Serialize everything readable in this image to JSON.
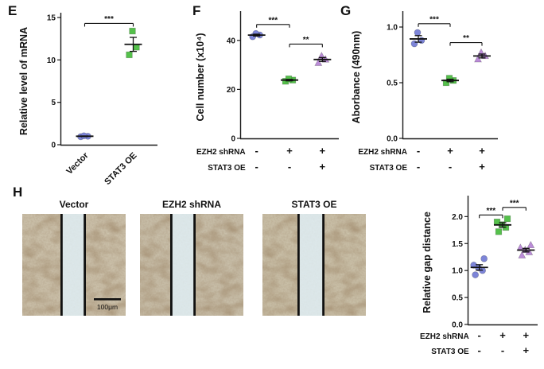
{
  "panel_labels": {
    "e": "E",
    "f": "F",
    "g": "G",
    "h": "H"
  },
  "colors": {
    "axis": "#1a1a1a",
    "blue": "#7d85d8",
    "green": "#55c14b",
    "purple": "#bb8cd8"
  },
  "chart_data": [
    {
      "id": "E",
      "type": "scatter",
      "ylabel": "Relative level of mRNA",
      "ylim": [
        0,
        15
      ],
      "yticks": [
        {
          "v": 0,
          "t": "0"
        },
        {
          "v": 5,
          "t": "5"
        },
        {
          "v": 10,
          "t": "10"
        },
        {
          "v": 15,
          "t": "15"
        }
      ],
      "x_mode": "rotated",
      "groups": [
        {
          "label": "Vector",
          "marker": "circle",
          "color": "blue",
          "points": [
            0.95,
            1.0,
            1.05
          ]
        },
        {
          "label": "STAT3 OE",
          "marker": "square",
          "color": "green",
          "points": [
            10.6,
            11.5,
            13.4
          ]
        }
      ],
      "significance": [
        {
          "from": 0,
          "to": 1,
          "label": "***",
          "y": 14.3
        }
      ]
    },
    {
      "id": "F",
      "type": "scatter",
      "ylabel": "Cell number (x10⁴)",
      "ylim": [
        0,
        50
      ],
      "yticks": [
        {
          "v": 0,
          "t": "0"
        },
        {
          "v": 20,
          "t": "20"
        },
        {
          "v": 40,
          "t": "40"
        }
      ],
      "x_mode": "matrix",
      "groups": [
        {
          "marker": "circle",
          "color": "blue",
          "points": [
            41.5,
            42.2,
            42.8
          ]
        },
        {
          "marker": "square",
          "color": "green",
          "points": [
            23.3,
            23.8,
            24.3
          ]
        },
        {
          "marker": "triangle",
          "color": "purple",
          "points": [
            30.8,
            32.2,
            33.6
          ]
        }
      ],
      "significance": [
        {
          "from": 0,
          "to": 1,
          "label": "***",
          "y": 46.5
        },
        {
          "from": 1,
          "to": 2,
          "label": "**",
          "y": 38.5
        }
      ],
      "xmatrix": [
        {
          "label": "EZH2 shRNA",
          "values": [
            "-",
            "+",
            "+"
          ]
        },
        {
          "label": "STAT3 OE",
          "values": [
            "-",
            "-",
            "+"
          ]
        }
      ]
    },
    {
      "id": "G",
      "type": "scatter",
      "ylabel": "Aborbance (490nm)",
      "ylim": [
        0,
        1.1
      ],
      "yticks": [
        {
          "v": 0,
          "t": "0.0"
        },
        {
          "v": 0.5,
          "t": "0.5"
        },
        {
          "v": 1,
          "t": "1.0"
        }
      ],
      "x_mode": "matrix",
      "groups": [
        {
          "marker": "circle",
          "color": "blue",
          "points": [
            0.85,
            0.88,
            0.95
          ]
        },
        {
          "marker": "square",
          "color": "green",
          "points": [
            0.5,
            0.52,
            0.54
          ]
        },
        {
          "marker": "triangle",
          "color": "purple",
          "points": [
            0.71,
            0.74,
            0.77
          ]
        }
      ],
      "significance": [
        {
          "from": 0,
          "to": 1,
          "label": "***",
          "y": 1.03
        },
        {
          "from": 1,
          "to": 2,
          "label": "**",
          "y": 0.86
        }
      ],
      "xmatrix": [
        {
          "label": "EZH2 shRNA",
          "values": [
            "-",
            "+",
            "+"
          ]
        },
        {
          "label": "STAT3 OE",
          "values": [
            "-",
            "-",
            "+"
          ]
        }
      ]
    },
    {
      "id": "H",
      "type": "scatter",
      "ylabel": "Relative gap distance",
      "ylim": [
        0,
        2.3
      ],
      "yticks": [
        {
          "v": 0,
          "t": "0.0"
        },
        {
          "v": 0.5,
          "t": "0.5"
        },
        {
          "v": 1,
          "t": "1.0"
        },
        {
          "v": 1.5,
          "t": "1.5"
        },
        {
          "v": 2,
          "t": "2.0"
        }
      ],
      "x_mode": "matrix",
      "groups": [
        {
          "marker": "circle",
          "color": "blue",
          "points": [
            0.92,
            1.0,
            1.05,
            1.1,
            1.22
          ]
        },
        {
          "marker": "square",
          "color": "green",
          "points": [
            1.72,
            1.8,
            1.85,
            1.9,
            1.96
          ]
        },
        {
          "marker": "triangle",
          "color": "purple",
          "points": [
            1.28,
            1.34,
            1.38,
            1.42,
            1.47
          ]
        }
      ],
      "significance": [
        {
          "from": 0,
          "to": 1,
          "label": "***",
          "y": 2.03
        },
        {
          "from": 1,
          "to": 2,
          "label": "***",
          "y": 2.17
        }
      ],
      "xmatrix": [
        {
          "label": "EZH2 shRNA",
          "values": [
            "-",
            "+",
            "+"
          ]
        },
        {
          "label": "STAT3 OE",
          "values": [
            "-",
            "-",
            "+"
          ]
        }
      ]
    }
  ],
  "micrographs": {
    "items": [
      {
        "title": "Vector"
      },
      {
        "title": "EZH2 shRNA"
      },
      {
        "title": "STAT3 OE"
      }
    ],
    "scale_bar_label": "100μm"
  }
}
